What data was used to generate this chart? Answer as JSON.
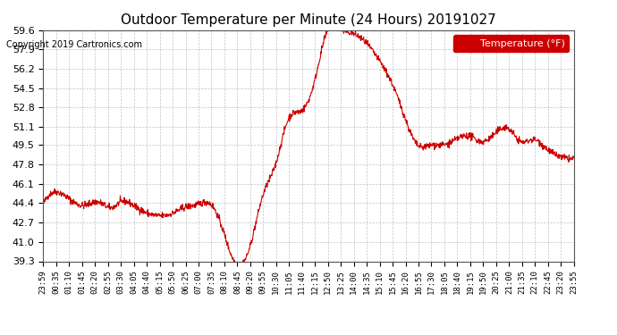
{
  "title": "Outdoor Temperature per Minute (24 Hours) 20191027",
  "copyright_text": "Copyright 2019 Cartronics.com",
  "legend_label": "Temperature (°F)",
  "line_color": "#cc0000",
  "background_color": "#ffffff",
  "plot_bg_color": "#ffffff",
  "grid_color": "#aaaaaa",
  "legend_bg_color": "#cc0000",
  "legend_text_color": "#ffffff",
  "ylim": [
    39.3,
    59.6
  ],
  "yticks": [
    39.3,
    41.0,
    42.7,
    44.4,
    46.1,
    47.8,
    49.5,
    51.1,
    52.8,
    54.5,
    56.2,
    57.9,
    59.6
  ],
  "xtick_labels": [
    "23:59",
    "00:35",
    "01:10",
    "01:45",
    "02:20",
    "02:55",
    "03:30",
    "04:05",
    "04:40",
    "05:15",
    "05:50",
    "06:25",
    "07:00",
    "07:35",
    "08:10",
    "08:45",
    "09:20",
    "09:55",
    "10:30",
    "11:05",
    "11:40",
    "12:15",
    "12:50",
    "13:25",
    "14:00",
    "14:35",
    "15:10",
    "15:45",
    "16:20",
    "16:55",
    "17:30",
    "18:05",
    "18:40",
    "19:15",
    "19:50",
    "20:25",
    "21:00",
    "21:35",
    "22:10",
    "22:45",
    "23:20",
    "23:55"
  ],
  "keyframe_times": [
    0,
    35,
    70,
    110,
    150,
    185,
    210,
    250,
    285,
    315,
    350,
    380,
    420,
    455,
    490,
    515,
    560,
    595,
    630,
    665,
    700,
    735,
    770,
    805,
    840,
    875,
    910,
    945,
    980,
    1015,
    1050,
    1085,
    1120,
    1155,
    1190,
    1225,
    1260,
    1295,
    1330,
    1365,
    1400,
    1439
  ],
  "keyframe_temps": [
    44.3,
    45.4,
    44.8,
    44.2,
    44.5,
    44.0,
    44.5,
    44.1,
    43.5,
    43.3,
    43.5,
    44.0,
    44.3,
    44.3,
    41.8,
    39.5,
    40.5,
    45.0,
    47.8,
    51.8,
    52.5,
    55.0,
    59.5,
    59.7,
    59.3,
    58.5,
    57.0,
    55.0,
    52.0,
    49.5,
    49.5,
    49.5,
    50.0,
    50.3,
    49.8,
    50.5,
    51.0,
    49.8,
    50.0,
    49.2,
    48.5,
    48.3
  ]
}
